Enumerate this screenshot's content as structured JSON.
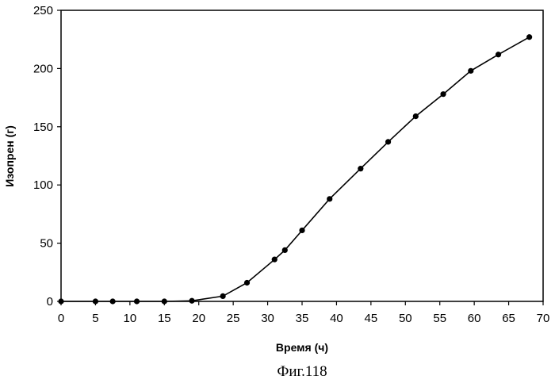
{
  "chart_data": {
    "type": "line",
    "title": "",
    "xlabel": "Время (ч)",
    "ylabel": "Изопрен (г)",
    "xlim": [
      0,
      70
    ],
    "ylim": [
      0,
      250
    ],
    "x_ticks": [
      "0",
      "5",
      "10",
      "15",
      "20",
      "25",
      "30",
      "35",
      "40",
      "45",
      "50",
      "55",
      "60",
      "65",
      "70"
    ],
    "y_ticks": [
      "0",
      "50",
      "100",
      "150",
      "200",
      "250"
    ],
    "grid": false,
    "legend": "none",
    "color": "#000000",
    "series": [
      {
        "x": [
          0,
          5,
          7.5,
          11,
          15,
          19,
          23.5,
          27,
          31,
          32.5,
          35,
          39,
          43.5,
          47.5,
          51.5,
          55.5,
          59.5,
          63.5,
          68
        ],
        "y": [
          0,
          0,
          0,
          0,
          0,
          0.5,
          4.5,
          16,
          36,
          44,
          61,
          88,
          114,
          137,
          159,
          178,
          198,
          212,
          227
        ]
      }
    ]
  },
  "caption": "Фиг.118"
}
